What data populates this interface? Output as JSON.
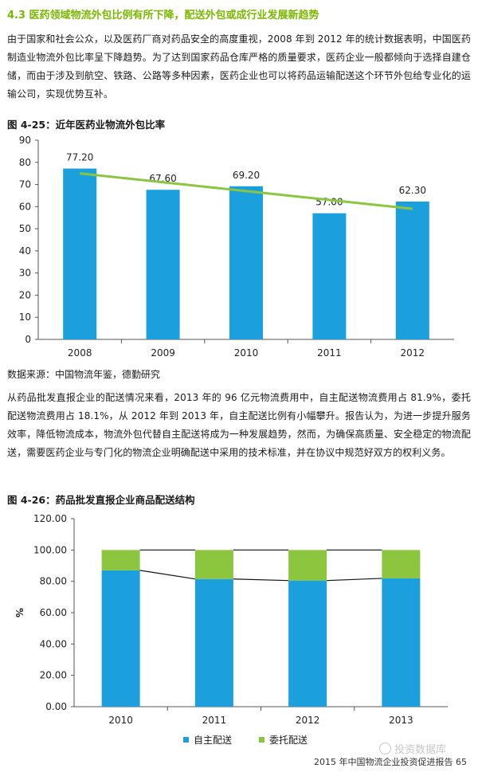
{
  "section": {
    "title": "4.3 医药领域物流外包比例有所下降，配送外包或成行业发展新趋势"
  },
  "paragraph1": "由于国家和社会公众，以及医药厂商对药品安全的高度重视，2008 年到 2012 年的统计数据表明，中国医药制造业物流外包比率呈下降趋势。为了达到国家药品仓库严格的质量要求，医药企业一般都倾向于选择自建仓储，而由于涉及到航空、铁路、公路等多种因素，医药企业也可以将药品运输配送这个环节外包给专业化的运输公司，实现优势互补。",
  "figure1": {
    "title": "图 4-25：近年医药业物流外包比率",
    "source": "数据来源：中国物流年鉴，德勤研究"
  },
  "paragraph2": "从药品批发直报企业的配送情况来看，2013 年的 96 亿元物流费用中，自主配送物流费用占 81.9%，委托配送物流费用占 18.1%，从 2012 年到 2013 年，自主配送比例有小幅攀升。报告认为，为进一步提升服务效率，降低物流成本，物流外包代替自主配送将成为一种发展趋势，然而，为确保高质量、安全稳定的物流配送，需要医药企业与专门化的物流企业明确配送中采用的技术标准，并在协议中规范好双方的权利义务。",
  "figure2": {
    "title": "图 4-26：药品批发直报企业商品配送结构"
  },
  "footer": {
    "text": "2015 年中国物流企业投资促进报告   65",
    "watermark": "投资数据库"
  },
  "chart_data": [
    {
      "type": "bar",
      "categories": [
        "2008",
        "2009",
        "2010",
        "2011",
        "2012"
      ],
      "values": [
        77.2,
        67.6,
        69.2,
        57.0,
        62.3
      ],
      "value_labels": [
        "77.20",
        "67.60",
        "69.20",
        "57.00",
        "62.30"
      ],
      "trendline": {
        "start": 75.0,
        "end": 59.0,
        "color": "#8cc63f"
      },
      "ylim": [
        0,
        90
      ],
      "yticks": [
        0,
        10,
        20,
        30,
        40,
        50,
        60,
        70,
        80,
        90
      ],
      "bar_color": "#1ba0dd",
      "grid": false
    },
    {
      "type": "bar",
      "stacked": true,
      "categories": [
        "2010",
        "2011",
        "2012",
        "2013"
      ],
      "series": [
        {
          "name": "自主配送",
          "values": [
            87.0,
            81.5,
            80.5,
            81.9
          ],
          "color": "#1ba0dd"
        },
        {
          "name": "委托配送",
          "values": [
            13.0,
            18.5,
            19.5,
            18.1
          ],
          "color": "#8cc63f"
        }
      ],
      "ylabel": "%",
      "ylim": [
        0,
        120
      ],
      "yticks": [
        "0.00",
        "20.00",
        "40.00",
        "60.00",
        "80.00",
        "100.00",
        "120.00"
      ],
      "legend": "bottom",
      "grid": false
    }
  ]
}
